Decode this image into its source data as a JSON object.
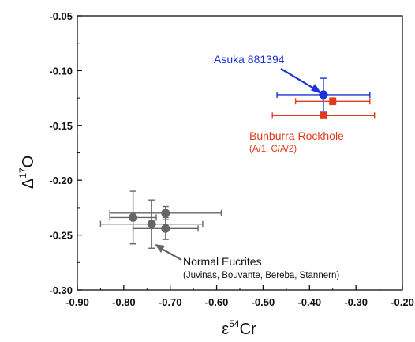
{
  "chart_data": {
    "type": "scatter",
    "xlabel": {
      "symbol": "ε",
      "sup": "54",
      "base": "Cr"
    },
    "ylabel": {
      "symbol": "Δ",
      "sup": "17",
      "base": "O"
    },
    "xlim": [
      -0.9,
      -0.2
    ],
    "ylim": [
      -0.3,
      -0.05
    ],
    "xticks": [
      "-0.90",
      "-0.80",
      "-0.70",
      "-0.60",
      "-0.50",
      "-0.40",
      "-0.30",
      "-0.20"
    ],
    "xtick_values": [
      -0.9,
      -0.8,
      -0.7,
      -0.6,
      -0.5,
      -0.4,
      -0.3,
      -0.2
    ],
    "yticks": [
      "-0.05",
      "-0.10",
      "-0.15",
      "-0.20",
      "-0.25",
      "-0.30"
    ],
    "ytick_values": [
      -0.05,
      -0.1,
      -0.15,
      -0.2,
      -0.25,
      -0.3
    ],
    "grid": false,
    "series": [
      {
        "name": "Asuka 881394",
        "color": "#1a33d6",
        "marker": "circle",
        "points": [
          {
            "x": -0.37,
            "y": -0.122,
            "xerr": 0.1,
            "yerr": 0.015
          }
        ]
      },
      {
        "name": "Bunburra Rockhole",
        "color": "#e03a1e",
        "marker": "square",
        "points": [
          {
            "x": -0.35,
            "y": -0.128,
            "xerr": 0.08,
            "yerr": 0.003
          },
          {
            "x": -0.37,
            "y": -0.141,
            "xerr": 0.11,
            "yerr": 0.002
          }
        ]
      },
      {
        "name": "Normal Eucrites",
        "color": "#666666",
        "marker": "circle",
        "points": [
          {
            "x": -0.78,
            "y": -0.234,
            "xerr": 0.05,
            "yerr": 0.024
          },
          {
            "x": -0.74,
            "y": -0.24,
            "xerr": 0.11,
            "yerr": 0.022
          },
          {
            "x": -0.71,
            "y": -0.23,
            "xerr": 0.12,
            "yerr": 0.006
          },
          {
            "x": -0.71,
            "y": -0.244,
            "xerr": 0.07,
            "yerr": 0.01
          }
        ]
      }
    ],
    "annotations": {
      "asuka": {
        "text": "Asuka 881394"
      },
      "bunburra": {
        "text": "Bunburra Rockhole",
        "subtext": "(A/1, C/A/2)"
      },
      "eucrites": {
        "text": "Normal Eucrites",
        "subtext": "(Juvinas, Bouvante, Bereba, Stannern)"
      }
    }
  }
}
